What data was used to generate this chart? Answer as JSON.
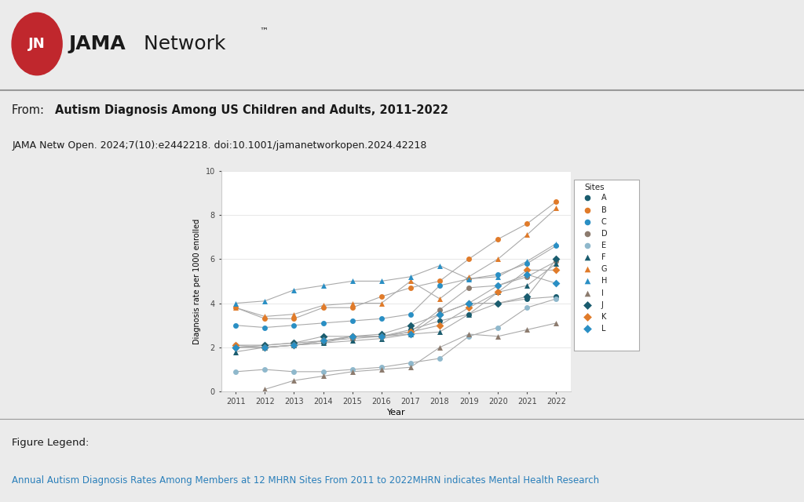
{
  "years": [
    2011,
    2012,
    2013,
    2014,
    2015,
    2016,
    2017,
    2018,
    2019,
    2020,
    2021,
    2022
  ],
  "sites": {
    "A": {
      "color": "#1a5c6e",
      "marker": "o",
      "data": [
        2.0,
        2.0,
        2.1,
        2.2,
        2.5,
        2.5,
        2.8,
        3.2,
        3.5,
        4.0,
        4.2,
        4.3
      ]
    },
    "B": {
      "color": "#e07b2a",
      "marker": "o",
      "data": [
        3.8,
        3.3,
        3.3,
        3.8,
        3.8,
        4.3,
        4.7,
        5.0,
        6.0,
        6.9,
        7.6,
        8.6
      ]
    },
    "C": {
      "color": "#2a8fc4",
      "marker": "o",
      "data": [
        3.0,
        2.9,
        3.0,
        3.1,
        3.2,
        3.3,
        3.5,
        4.8,
        5.1,
        5.3,
        5.8,
        6.6
      ]
    },
    "D": {
      "color": "#8c7b6e",
      "marker": "o",
      "data": [
        2.1,
        2.1,
        2.2,
        2.3,
        2.4,
        2.5,
        2.7,
        3.7,
        4.7,
        4.8,
        5.2,
        5.9
      ]
    },
    "E": {
      "color": "#8fb8cc",
      "marker": "o",
      "data": [
        0.9,
        1.0,
        0.9,
        0.9,
        1.0,
        1.1,
        1.3,
        1.5,
        2.5,
        2.9,
        3.8,
        4.2
      ]
    },
    "F": {
      "color": "#1a5c6e",
      "marker": "^",
      "data": [
        1.8,
        2.0,
        2.1,
        2.2,
        2.3,
        2.4,
        2.6,
        2.7,
        3.5,
        4.5,
        4.8,
        5.8
      ]
    },
    "G": {
      "color": "#e07b2a",
      "marker": "^",
      "data": [
        3.8,
        3.4,
        3.5,
        3.9,
        4.0,
        4.0,
        5.0,
        4.2,
        5.2,
        6.0,
        7.1,
        8.3
      ]
    },
    "H": {
      "color": "#2a8fc4",
      "marker": "^",
      "data": [
        4.0,
        4.1,
        4.6,
        4.8,
        5.0,
        5.0,
        5.2,
        5.7,
        5.1,
        5.2,
        5.9,
        6.7
      ]
    },
    "I": {
      "color": "#8c7b6e",
      "marker": "^",
      "data": [
        null,
        0.1,
        0.5,
        0.7,
        0.9,
        1.0,
        1.1,
        2.0,
        2.6,
        2.5,
        2.8,
        3.1
      ]
    },
    "J": {
      "color": "#1a5c6e",
      "marker": "D",
      "data": [
        2.0,
        2.1,
        2.2,
        2.5,
        2.5,
        2.6,
        3.0,
        3.5,
        4.0,
        4.0,
        4.3,
        6.0
      ]
    },
    "K": {
      "color": "#e07b2a",
      "marker": "D",
      "data": [
        2.1,
        2.0,
        2.1,
        2.3,
        2.5,
        2.5,
        2.7,
        3.0,
        3.8,
        4.5,
        5.5,
        5.5
      ]
    },
    "L": {
      "color": "#2a8fc4",
      "marker": "D",
      "data": [
        2.0,
        2.0,
        2.1,
        2.3,
        2.5,
        2.5,
        2.6,
        3.5,
        4.0,
        4.8,
        5.3,
        4.9
      ]
    }
  },
  "ylabel": "Diagnosis rate per 1000 enrolled",
  "xlabel": "Year",
  "ylim": [
    0,
    10
  ],
  "yticks": [
    0,
    2,
    4,
    6,
    8,
    10
  ],
  "subtitle_text": "JAMA Netw Open. 2024;7(10):e2442218. doi:10.1001/jamanetworkopen.2024.42218",
  "figure_legend": "Figure Legend:",
  "figure_legend2": "Annual Autism Diagnosis Rates Among Members at 12 MHRN Sites From 2011 to 2022MHRN indicates Mental Health Research",
  "legend_title": "Sites",
  "line_color": "#aaaaaa",
  "bg_color_header": "#ffffff",
  "bg_color_body": "#ebebeb",
  "plot_bg": "#ffffff",
  "jama_red": "#c0272d",
  "jama_gray_line": "#999999"
}
